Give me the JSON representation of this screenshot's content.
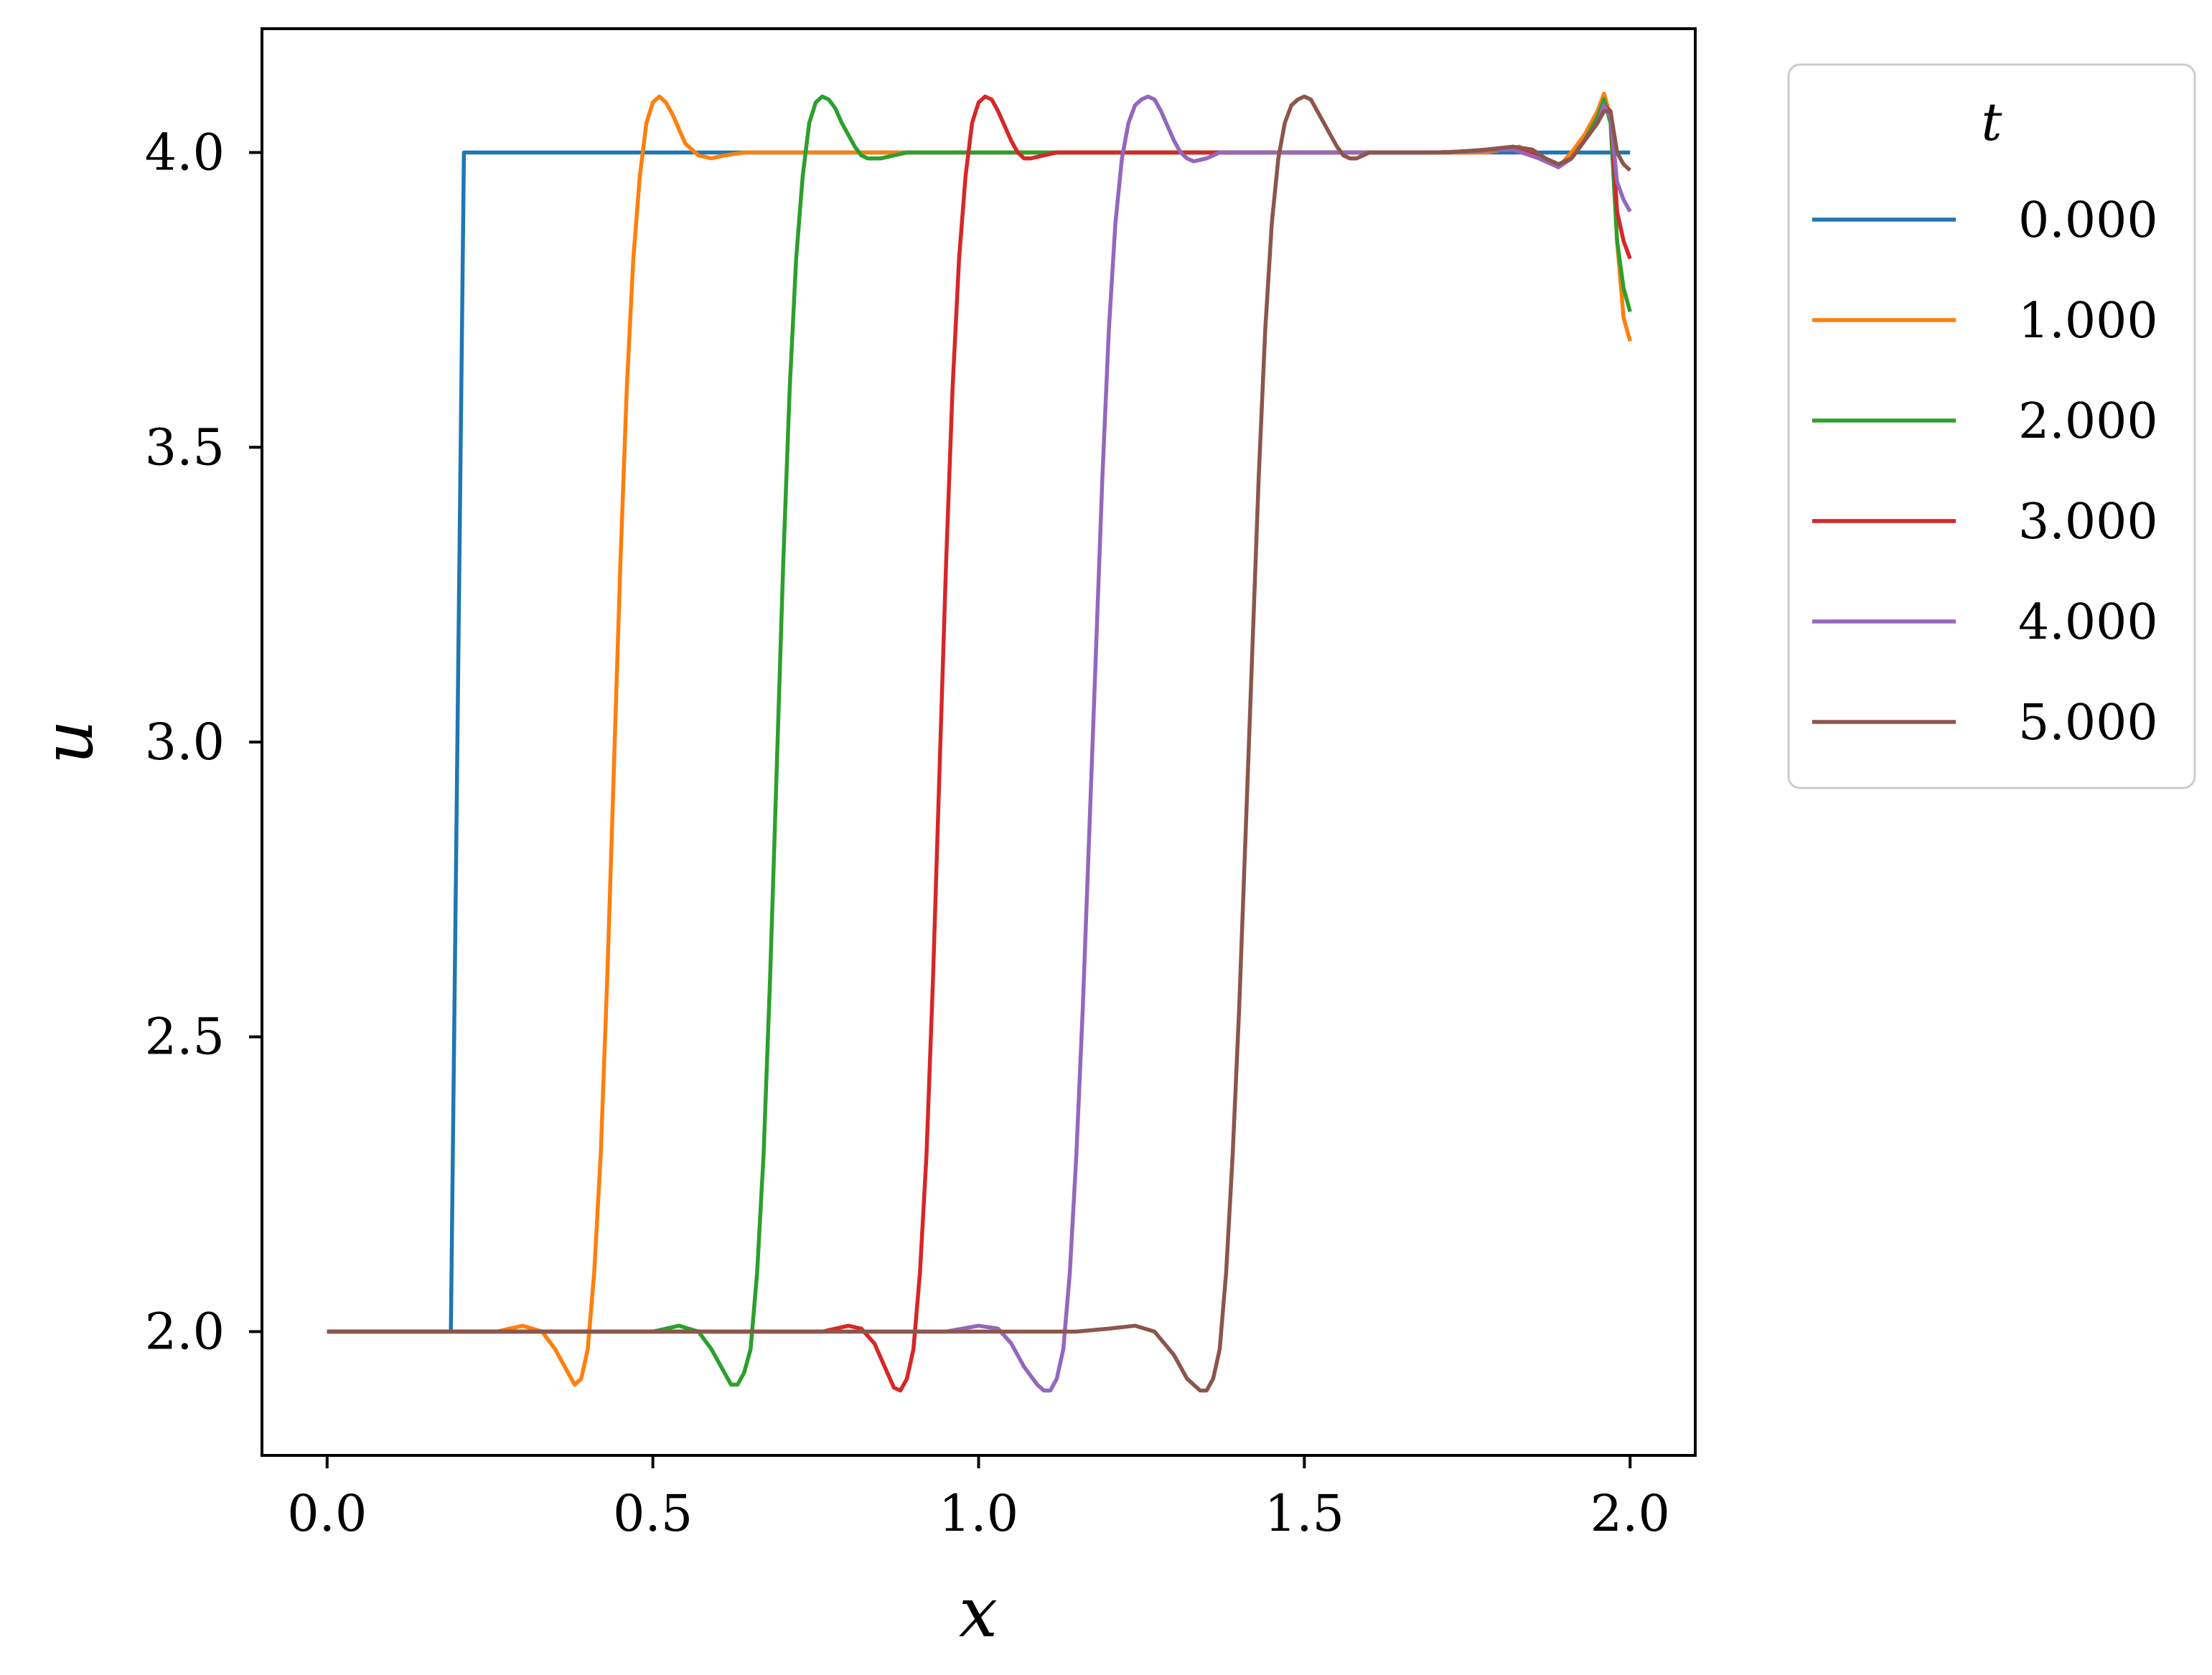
{
  "chart_data": {
    "type": "line",
    "xlabel": "x",
    "ylabel": "u",
    "xlim": [
      -0.1,
      2.1
    ],
    "ylim": [
      1.79,
      4.21
    ],
    "xticks": [
      0.0,
      0.5,
      1.0,
      1.5,
      2.0
    ],
    "xtick_labels": [
      "0.0",
      "0.5",
      "1.0",
      "1.5",
      "2.0"
    ],
    "yticks": [
      2.0,
      2.5,
      3.0,
      3.5,
      4.0
    ],
    "ytick_labels": [
      "2.0",
      "2.5",
      "3.0",
      "3.5",
      "4.0"
    ],
    "grid": false,
    "legend": {
      "title": "t",
      "position": "outside-right-top"
    },
    "series": [
      {
        "name": "0.000",
        "color": "#1f77b4",
        "x": [
          0.0,
          0.19,
          0.21,
          2.0
        ],
        "y": [
          2.0,
          2.0,
          4.0,
          4.0
        ]
      },
      {
        "name": "1.000",
        "color": "#ff7f0e",
        "x": [
          0.0,
          0.26,
          0.3,
          0.33,
          0.35,
          0.37,
          0.38,
          0.39,
          0.4,
          0.41,
          0.42,
          0.43,
          0.44,
          0.45,
          0.46,
          0.47,
          0.48,
          0.49,
          0.5,
          0.51,
          0.52,
          0.53,
          0.54,
          0.55,
          0.57,
          0.59,
          0.61,
          0.64,
          0.7,
          0.8,
          1.0,
          1.4,
          1.6,
          1.78,
          1.83,
          1.86,
          1.89,
          1.91,
          1.93,
          1.95,
          1.96,
          1.97,
          1.98,
          1.99,
          2.0
        ],
        "y": [
          2.0,
          2.0,
          2.01,
          2.0,
          1.97,
          1.93,
          1.91,
          1.92,
          1.97,
          2.1,
          2.3,
          2.6,
          2.95,
          3.3,
          3.6,
          3.82,
          3.96,
          4.05,
          4.085,
          4.095,
          4.085,
          4.065,
          4.04,
          4.015,
          3.995,
          3.99,
          3.995,
          4.0,
          4.0,
          4.0,
          4.0,
          4.0,
          4.0,
          4.0,
          4.01,
          3.99,
          3.975,
          4.0,
          4.03,
          4.07,
          4.1,
          4.06,
          3.85,
          3.72,
          3.68
        ]
      },
      {
        "name": "2.000",
        "color": "#2ca02c",
        "x": [
          0.0,
          0.5,
          0.54,
          0.57,
          0.59,
          0.61,
          0.62,
          0.63,
          0.64,
          0.65,
          0.66,
          0.67,
          0.68,
          0.69,
          0.7,
          0.71,
          0.72,
          0.73,
          0.74,
          0.75,
          0.76,
          0.77,
          0.78,
          0.79,
          0.8,
          0.81,
          0.82,
          0.83,
          0.85,
          0.87,
          0.89,
          0.91,
          0.95,
          1.0,
          1.2,
          1.5,
          1.7,
          1.82,
          1.86,
          1.89,
          1.91,
          1.93,
          1.95,
          1.96,
          1.97,
          1.98,
          1.99,
          2.0
        ],
        "y": [
          2.0,
          2.0,
          2.01,
          2.0,
          1.97,
          1.93,
          1.91,
          1.91,
          1.93,
          1.97,
          2.1,
          2.3,
          2.6,
          2.95,
          3.3,
          3.6,
          3.82,
          3.96,
          4.05,
          4.085,
          4.095,
          4.09,
          4.075,
          4.05,
          4.03,
          4.01,
          3.995,
          3.99,
          3.99,
          3.995,
          4.0,
          4.0,
          4.0,
          4.0,
          4.0,
          4.0,
          4.0,
          4.005,
          3.995,
          3.98,
          3.99,
          4.02,
          4.06,
          4.09,
          4.05,
          3.85,
          3.77,
          3.73
        ]
      },
      {
        "name": "3.000",
        "color": "#d62728",
        "x": [
          0.0,
          0.76,
          0.8,
          0.82,
          0.84,
          0.86,
          0.87,
          0.88,
          0.89,
          0.9,
          0.91,
          0.92,
          0.93,
          0.94,
          0.95,
          0.96,
          0.97,
          0.98,
          0.99,
          1.0,
          1.01,
          1.02,
          1.03,
          1.04,
          1.05,
          1.06,
          1.07,
          1.08,
          1.1,
          1.12,
          1.14,
          1.16,
          1.2,
          1.3,
          1.5,
          1.7,
          1.82,
          1.86,
          1.89,
          1.91,
          1.93,
          1.95,
          1.96,
          1.97,
          1.98,
          1.99,
          2.0
        ],
        "y": [
          2.0,
          2.0,
          2.01,
          2.005,
          1.98,
          1.93,
          1.905,
          1.9,
          1.92,
          1.97,
          2.1,
          2.3,
          2.6,
          2.95,
          3.3,
          3.6,
          3.82,
          3.96,
          4.05,
          4.085,
          4.095,
          4.09,
          4.07,
          4.045,
          4.02,
          4.0,
          3.99,
          3.99,
          3.995,
          4.0,
          4.0,
          4.0,
          4.0,
          4.0,
          4.0,
          4.0,
          4.005,
          3.995,
          3.975,
          3.99,
          4.02,
          4.05,
          4.08,
          4.07,
          3.9,
          3.85,
          3.82
        ]
      },
      {
        "name": "4.000",
        "color": "#9467bd",
        "x": [
          0.0,
          0.95,
          1.0,
          1.03,
          1.05,
          1.07,
          1.09,
          1.1,
          1.11,
          1.12,
          1.13,
          1.14,
          1.15,
          1.16,
          1.17,
          1.18,
          1.19,
          1.2,
          1.21,
          1.22,
          1.23,
          1.24,
          1.25,
          1.26,
          1.27,
          1.28,
          1.29,
          1.3,
          1.31,
          1.32,
          1.33,
          1.35,
          1.37,
          1.39,
          1.42,
          1.5,
          1.7,
          1.82,
          1.86,
          1.89,
          1.91,
          1.93,
          1.95,
          1.96,
          1.97,
          1.98,
          1.99,
          2.0
        ],
        "y": [
          2.0,
          2.0,
          2.01,
          2.005,
          1.98,
          1.94,
          1.91,
          1.9,
          1.9,
          1.92,
          1.97,
          2.1,
          2.3,
          2.55,
          2.85,
          3.15,
          3.45,
          3.7,
          3.88,
          3.99,
          4.05,
          4.08,
          4.09,
          4.095,
          4.09,
          4.07,
          4.045,
          4.02,
          4.0,
          3.99,
          3.985,
          3.99,
          4.0,
          4.0,
          4.0,
          4.0,
          4.0,
          4.005,
          3.99,
          3.975,
          3.99,
          4.02,
          4.05,
          4.08,
          4.06,
          3.95,
          3.92,
          3.9
        ]
      },
      {
        "name": "5.000",
        "color": "#8c564b",
        "x": [
          0.0,
          1.15,
          1.2,
          1.24,
          1.27,
          1.3,
          1.32,
          1.34,
          1.35,
          1.36,
          1.37,
          1.38,
          1.39,
          1.4,
          1.41,
          1.42,
          1.43,
          1.44,
          1.45,
          1.46,
          1.47,
          1.48,
          1.49,
          1.5,
          1.51,
          1.52,
          1.53,
          1.54,
          1.55,
          1.56,
          1.57,
          1.58,
          1.59,
          1.6,
          1.62,
          1.64,
          1.66,
          1.68,
          1.72,
          1.78,
          1.82,
          1.85,
          1.87,
          1.89,
          1.91,
          1.93,
          1.95,
          1.96,
          1.97,
          1.98,
          1.99,
          2.0
        ],
        "y": [
          2.0,
          2.0,
          2.005,
          2.01,
          2.0,
          1.96,
          1.92,
          1.9,
          1.9,
          1.92,
          1.97,
          2.1,
          2.3,
          2.55,
          2.85,
          3.15,
          3.45,
          3.7,
          3.88,
          3.99,
          4.05,
          4.08,
          4.09,
          4.095,
          4.09,
          4.07,
          4.05,
          4.03,
          4.01,
          3.995,
          3.99,
          3.99,
          3.995,
          4.0,
          4.0,
          4.0,
          4.0,
          4.0,
          4.0,
          4.005,
          4.01,
          4.005,
          3.99,
          3.98,
          3.99,
          4.02,
          4.05,
          4.07,
          4.07,
          4.0,
          3.98,
          3.97
        ]
      }
    ]
  }
}
